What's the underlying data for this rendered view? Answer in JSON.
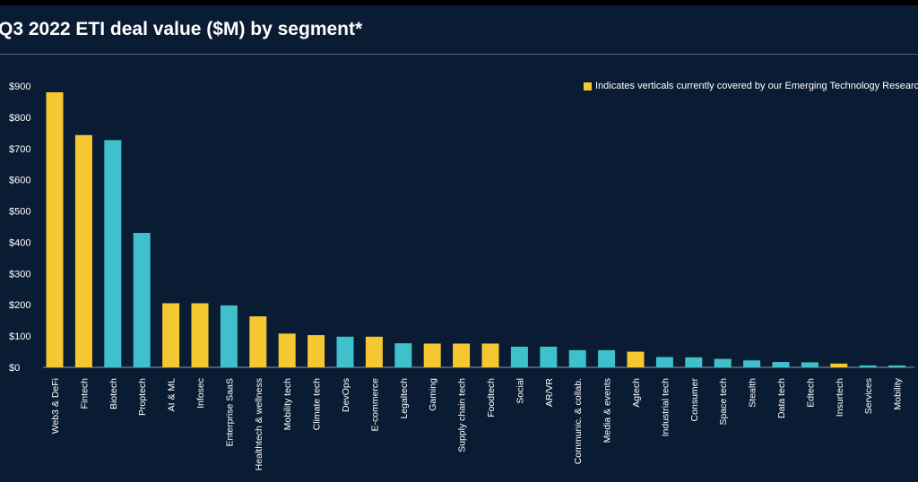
{
  "title": "Q3 2022 ETI deal value ($M) by segment*",
  "legend": {
    "label": "Indicates verticals currently covered by our Emerging Technology Research team",
    "color": "#f5c832"
  },
  "colors": {
    "covered": "#f5c832",
    "other": "#3fc0cb",
    "background": "#0a1c33",
    "text": "#ffffff"
  },
  "chart_data": {
    "type": "bar",
    "title": "Q3 2022 ETI deal value ($M) by segment*",
    "xlabel": "",
    "ylabel": "",
    "ylim": [
      0,
      900
    ],
    "yticks": [
      "$0",
      "$100",
      "$200",
      "$300",
      "$400",
      "$500",
      "$600",
      "$700",
      "$800",
      "$900"
    ],
    "grid": false,
    "legend_position": "top-right",
    "categories": [
      "Web3 & DeFi",
      "Fintech",
      "Biotech",
      "Proptech",
      "AI & ML",
      "Infosec",
      "Enterprise SaaS",
      "Healthtech & wellness",
      "Mobility tech",
      "Climate tech",
      "DevOps",
      "E-commerce",
      "Legaltech",
      "Gaming",
      "Supply chain tech",
      "Foodtech",
      "Social",
      "AR/VR",
      "Communic. & collab.",
      "Media & events",
      "Agtech",
      "Industrial tech",
      "Consumer",
      "Space tech",
      "Stealth",
      "Data tech",
      "Edtech",
      "Insurtech",
      "Services",
      "Mobility"
    ],
    "values": [
      880,
      743,
      727,
      430,
      205,
      205,
      198,
      163,
      108,
      103,
      98,
      98,
      77,
      76,
      76,
      76,
      66,
      66,
      55,
      55,
      50,
      33,
      32,
      27,
      22,
      17,
      16,
      12,
      6,
      6
    ],
    "covered": [
      true,
      true,
      false,
      false,
      true,
      true,
      false,
      true,
      true,
      true,
      false,
      true,
      false,
      true,
      true,
      true,
      false,
      false,
      false,
      false,
      true,
      false,
      false,
      false,
      false,
      false,
      false,
      true,
      false,
      false
    ]
  }
}
